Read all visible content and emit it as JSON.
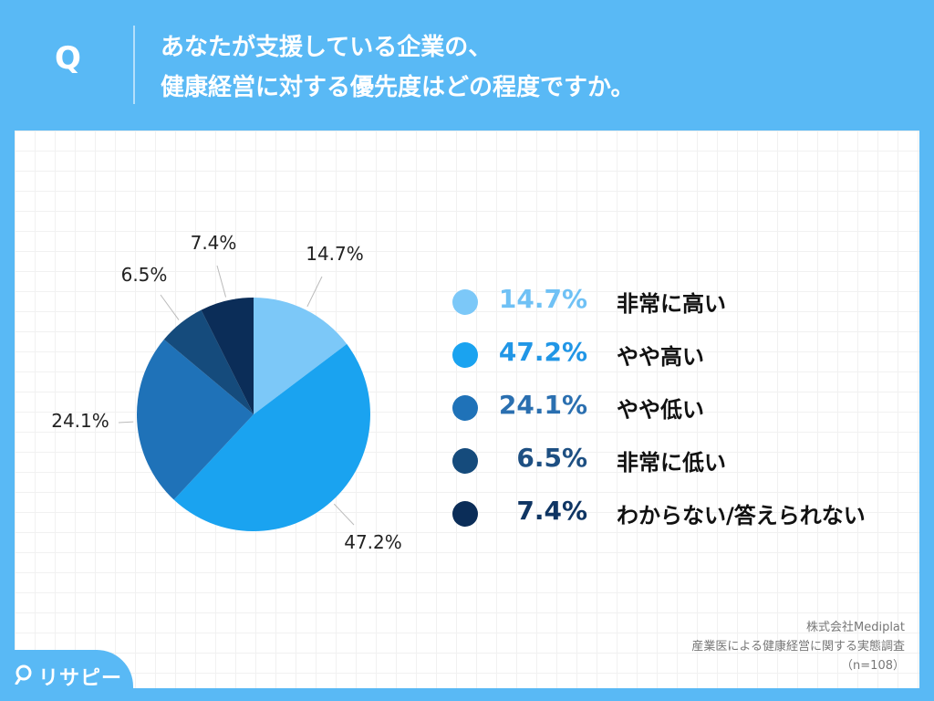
{
  "header": {
    "q_mark": "Q",
    "title_line1": "あなたが支援している企業の、",
    "title_line2": "健康経営に対する優先度はどの程度ですか。"
  },
  "chart_data": {
    "type": "pie",
    "unit": "%",
    "slices": [
      {
        "label": "非常に高い",
        "value": 14.7,
        "display": "14.7%",
        "color": "#7cc8f8"
      },
      {
        "label": "やや高い",
        "value": 47.2,
        "display": "47.2%",
        "color": "#1aa3f0"
      },
      {
        "label": "やや低い",
        "value": 24.1,
        "display": "24.1%",
        "color": "#1f72b8"
      },
      {
        "label": "非常に低い",
        "value": 6.5,
        "display": "6.5%",
        "color": "#154b7c"
      },
      {
        "label": "わからない/答えられない",
        "value": 7.4,
        "display": "7.4%",
        "color": "#0b2d58"
      }
    ],
    "legend_position": "right",
    "start_angle": "12 o'clock, clockwise"
  },
  "legend": {
    "items": [
      {
        "value": "14.7%",
        "label": "非常に高い",
        "color": "#7cc8f8",
        "value_color": "#6fc1f5"
      },
      {
        "value": "47.2%",
        "label": "やや高い",
        "color": "#1aa3f0",
        "value_color": "#2196e6"
      },
      {
        "value": "24.1%",
        "label": "やや低い",
        "color": "#1f72b8",
        "value_color": "#2a6fb0"
      },
      {
        "value": "6.5%",
        "label": "非常に低い",
        "color": "#154b7c",
        "value_color": "#1d4f82"
      },
      {
        "value": "7.4%",
        "label": "わからない/答えられない",
        "color": "#0b2d58",
        "value_color": "#0f3563"
      }
    ]
  },
  "source": {
    "company": "株式会社Mediplat",
    "survey": "産業医による健康経営に関する実態調査",
    "n": "（n=108）"
  },
  "logo": {
    "text": "リサピー"
  },
  "colors": {
    "background": "#59b9f5",
    "panel": "#ffffff"
  }
}
